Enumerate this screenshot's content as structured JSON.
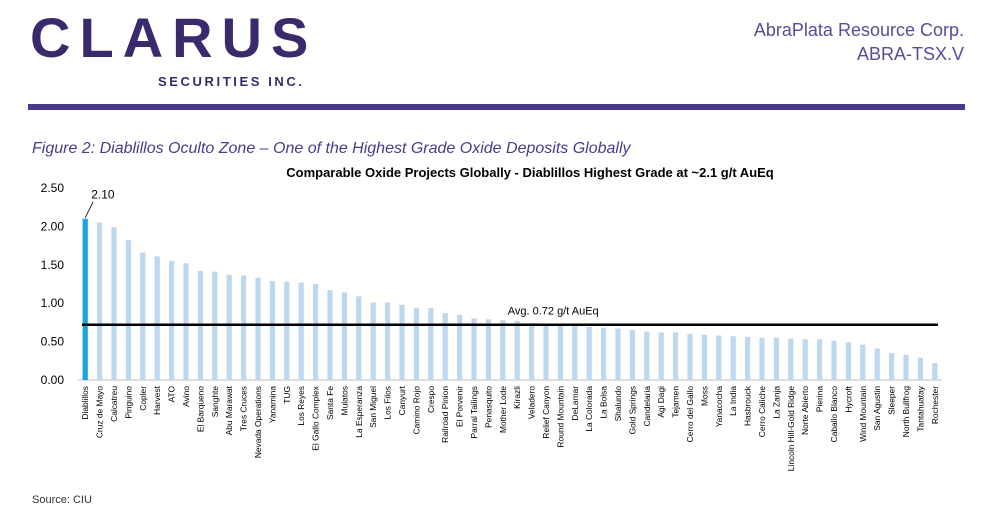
{
  "header": {
    "logo_text": "CLARUS",
    "logo_subtext": "SECURITIES INC.",
    "company_name": "AbraPlata Resource Corp.",
    "ticker": "ABRA-TSX.V"
  },
  "figure": {
    "caption": "Figure 2:  Diablillos Oculto Zone – One of the Highest Grade Oxide Deposits Globally"
  },
  "source": "Source: CIU",
  "colors": {
    "brand": "#3b2a6b",
    "accent": "#4b3a8c",
    "highlight_bar": "#1aa3e0",
    "bar": "#bdd7ee",
    "average_line": "#000000"
  },
  "chart_data": {
    "type": "bar",
    "title": "Comparable Oxide Projects Globally - Diablillos Highest Grade at ~2.1 g/t AuEq",
    "xlabel": "",
    "ylabel": "",
    "ylim": [
      0,
      2.5
    ],
    "yticks": [
      "0.00",
      "0.50",
      "1.00",
      "1.50",
      "2.00",
      "2.50"
    ],
    "highlight_index": 0,
    "highlight_label": "2.10",
    "average": {
      "value": 0.72,
      "label": "Avg. 0.72 g/t AuEq"
    },
    "categories": [
      "Diablillos",
      "Cruz de Mayo",
      "Calcatreu",
      "Pinguino",
      "Copler",
      "Harvest",
      "ATO",
      "Avino",
      "El Barqueno",
      "Sanghte",
      "Abu Marawat",
      "Tres Cruces",
      "Nevada Operations",
      "Yanamina",
      "TUG",
      "Los Reyes",
      "El Gallo Complex",
      "Santa Fe",
      "Mulatos",
      "La Esperanza",
      "San Miguel",
      "Los Filos",
      "Canyurt",
      "Camino Rojo",
      "Crespo",
      "Railroad Pinion",
      "El Porvenir",
      "Parral Tailings",
      "Penasquito",
      "Mother Lode",
      "Kirazli",
      "Veladero",
      "Relief Canyon",
      "Round Mountain",
      "DeLamar",
      "La Colorada",
      "La Bolsa",
      "Shalundo",
      "Gold Springs",
      "Candelaria",
      "Agi Dagi",
      "Tejamen",
      "Cerro del Gallo",
      "Moss",
      "Yanacocha",
      "La India",
      "Hasbrouck",
      "Cerro Caliche",
      "La Zanja",
      "Lincoln Hill-Gold Ridge",
      "Norte Abierto",
      "Pierina",
      "Caballo Blanco",
      "Hycroft",
      "Wind Mountain",
      "San Agustin",
      "Sleeper",
      "North Bullfrog",
      "Tantahuatay",
      "Rochester"
    ],
    "values": [
      2.1,
      2.05,
      1.99,
      1.82,
      1.66,
      1.61,
      1.55,
      1.52,
      1.42,
      1.41,
      1.37,
      1.36,
      1.33,
      1.29,
      1.28,
      1.27,
      1.25,
      1.17,
      1.14,
      1.09,
      1.01,
      1.01,
      0.98,
      0.94,
      0.94,
      0.87,
      0.85,
      0.8,
      0.79,
      0.78,
      0.77,
      0.74,
      0.72,
      0.71,
      0.7,
      0.69,
      0.68,
      0.67,
      0.65,
      0.63,
      0.62,
      0.62,
      0.6,
      0.59,
      0.58,
      0.57,
      0.56,
      0.55,
      0.55,
      0.54,
      0.53,
      0.53,
      0.51,
      0.49,
      0.46,
      0.41,
      0.35,
      0.33,
      0.29,
      0.22
    ]
  }
}
